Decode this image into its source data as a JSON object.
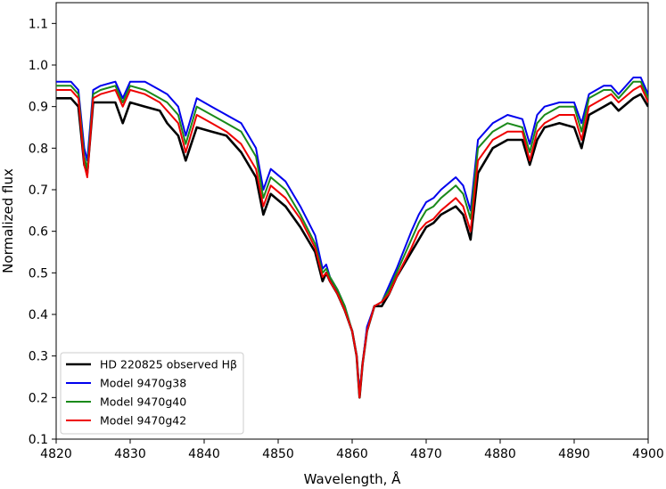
{
  "chart_data": {
    "type": "line",
    "xlabel": "Wavelength, Å",
    "ylabel": "Normalized flux",
    "xlim": [
      4820,
      4900
    ],
    "ylim": [
      0.1,
      1.15
    ],
    "xticks": [
      4820,
      4830,
      4840,
      4850,
      4860,
      4870,
      4880,
      4890,
      4900
    ],
    "yticks": [
      0.1,
      0.2,
      0.3,
      0.4,
      0.5,
      0.6,
      0.7,
      0.8,
      0.9,
      1.0,
      1.1
    ],
    "legend_position": "lower-left",
    "grid": false,
    "series": [
      {
        "name": "HD 220825 observed Hβ",
        "color": "#000000",
        "x": [
          4820,
          4822,
          4823,
          4823.8,
          4824.2,
          4825,
          4826,
          4828,
          4829,
          4830,
          4832,
          4834,
          4835,
          4836.5,
          4837.5,
          4839,
          4841,
          4843,
          4845,
          4847,
          4848,
          4849,
          4851,
          4853,
          4855,
          4856,
          4856.5,
          4857,
          4858,
          4859,
          4860,
          4860.6,
          4861,
          4861.4,
          4862,
          4863,
          4864,
          4865,
          4866,
          4868,
          4869,
          4870,
          4871,
          4872,
          4874,
          4875,
          4876,
          4877,
          4879,
          4881,
          4883,
          4884,
          4885,
          4886,
          4888,
          4890,
          4891,
          4892,
          4894,
          4895,
          4896,
          4898,
          4899,
          4900
        ],
        "y": [
          0.92,
          0.92,
          0.9,
          0.76,
          0.74,
          0.91,
          0.91,
          0.91,
          0.86,
          0.91,
          0.9,
          0.89,
          0.86,
          0.83,
          0.77,
          0.85,
          0.84,
          0.83,
          0.79,
          0.73,
          0.64,
          0.69,
          0.66,
          0.61,
          0.55,
          0.48,
          0.5,
          0.48,
          0.45,
          0.41,
          0.36,
          0.3,
          0.2,
          0.28,
          0.36,
          0.42,
          0.42,
          0.45,
          0.49,
          0.55,
          0.58,
          0.61,
          0.62,
          0.64,
          0.66,
          0.64,
          0.58,
          0.74,
          0.8,
          0.82,
          0.82,
          0.76,
          0.82,
          0.85,
          0.86,
          0.85,
          0.8,
          0.88,
          0.9,
          0.91,
          0.89,
          0.92,
          0.93,
          0.9
        ]
      },
      {
        "name": "Model 9470g38",
        "color": "#0000ee",
        "x": [
          4820,
          4822,
          4823,
          4823.8,
          4824.2,
          4825,
          4826,
          4828,
          4829,
          4830,
          4832,
          4834,
          4835,
          4836.5,
          4837.5,
          4839,
          4841,
          4843,
          4845,
          4847,
          4848,
          4849,
          4851,
          4853,
          4855,
          4856,
          4856.5,
          4857,
          4858,
          4859,
          4860,
          4860.6,
          4861,
          4861.4,
          4862,
          4863,
          4864,
          4865,
          4866,
          4868,
          4869,
          4870,
          4871,
          4872,
          4874,
          4875,
          4876,
          4877,
          4879,
          4881,
          4883,
          4884,
          4885,
          4886,
          4888,
          4890,
          4891,
          4892,
          4894,
          4895,
          4896,
          4898,
          4899,
          4900
        ],
        "y": [
          0.96,
          0.96,
          0.94,
          0.8,
          0.77,
          0.94,
          0.95,
          0.96,
          0.92,
          0.96,
          0.96,
          0.94,
          0.93,
          0.9,
          0.83,
          0.92,
          0.9,
          0.88,
          0.86,
          0.8,
          0.7,
          0.75,
          0.72,
          0.66,
          0.59,
          0.51,
          0.52,
          0.49,
          0.46,
          0.42,
          0.36,
          0.3,
          0.21,
          0.28,
          0.37,
          0.42,
          0.43,
          0.47,
          0.51,
          0.6,
          0.64,
          0.67,
          0.68,
          0.7,
          0.73,
          0.71,
          0.65,
          0.82,
          0.86,
          0.88,
          0.87,
          0.81,
          0.88,
          0.9,
          0.91,
          0.91,
          0.86,
          0.93,
          0.95,
          0.95,
          0.93,
          0.97,
          0.97,
          0.93
        ]
      },
      {
        "name": "Model 9470g40",
        "color": "#1a8a1a",
        "x": [
          4820,
          4822,
          4823,
          4823.8,
          4824.2,
          4825,
          4826,
          4828,
          4829,
          4830,
          4832,
          4834,
          4835,
          4836.5,
          4837.5,
          4839,
          4841,
          4843,
          4845,
          4847,
          4848,
          4849,
          4851,
          4853,
          4855,
          4856,
          4856.5,
          4857,
          4858,
          4859,
          4860,
          4860.6,
          4861,
          4861.4,
          4862,
          4863,
          4864,
          4865,
          4866,
          4868,
          4869,
          4870,
          4871,
          4872,
          4874,
          4875,
          4876,
          4877,
          4879,
          4881,
          4883,
          4884,
          4885,
          4886,
          4888,
          4890,
          4891,
          4892,
          4894,
          4895,
          4896,
          4898,
          4899,
          4900
        ],
        "y": [
          0.95,
          0.95,
          0.93,
          0.78,
          0.75,
          0.93,
          0.94,
          0.95,
          0.91,
          0.95,
          0.94,
          0.92,
          0.91,
          0.88,
          0.81,
          0.9,
          0.88,
          0.86,
          0.84,
          0.78,
          0.68,
          0.73,
          0.7,
          0.64,
          0.57,
          0.5,
          0.51,
          0.49,
          0.46,
          0.42,
          0.36,
          0.3,
          0.2,
          0.28,
          0.36,
          0.42,
          0.43,
          0.46,
          0.5,
          0.58,
          0.62,
          0.65,
          0.66,
          0.68,
          0.71,
          0.69,
          0.63,
          0.8,
          0.84,
          0.86,
          0.85,
          0.79,
          0.86,
          0.88,
          0.9,
          0.9,
          0.84,
          0.92,
          0.94,
          0.94,
          0.92,
          0.96,
          0.96,
          0.92
        ]
      },
      {
        "name": "Model 9470g42",
        "color": "#ee0000",
        "x": [
          4820,
          4822,
          4823,
          4823.8,
          4824.2,
          4825,
          4826,
          4828,
          4829,
          4830,
          4832,
          4834,
          4835,
          4836.5,
          4837.5,
          4839,
          4841,
          4843,
          4845,
          4847,
          4848,
          4849,
          4851,
          4853,
          4855,
          4856,
          4856.5,
          4857,
          4858,
          4859,
          4860,
          4860.6,
          4861,
          4861.4,
          4862,
          4863,
          4864,
          4865,
          4866,
          4868,
          4869,
          4870,
          4871,
          4872,
          4874,
          4875,
          4876,
          4877,
          4879,
          4881,
          4883,
          4884,
          4885,
          4886,
          4888,
          4890,
          4891,
          4892,
          4894,
          4895,
          4896,
          4898,
          4899,
          4900
        ],
        "y": [
          0.94,
          0.94,
          0.92,
          0.76,
          0.73,
          0.92,
          0.93,
          0.94,
          0.9,
          0.94,
          0.93,
          0.91,
          0.89,
          0.86,
          0.79,
          0.88,
          0.86,
          0.84,
          0.81,
          0.75,
          0.66,
          0.71,
          0.68,
          0.63,
          0.56,
          0.49,
          0.5,
          0.48,
          0.45,
          0.41,
          0.36,
          0.3,
          0.2,
          0.28,
          0.36,
          0.42,
          0.43,
          0.45,
          0.49,
          0.56,
          0.6,
          0.62,
          0.63,
          0.65,
          0.68,
          0.66,
          0.6,
          0.77,
          0.82,
          0.84,
          0.84,
          0.77,
          0.84,
          0.86,
          0.88,
          0.88,
          0.82,
          0.9,
          0.92,
          0.93,
          0.91,
          0.94,
          0.95,
          0.91
        ]
      }
    ]
  }
}
